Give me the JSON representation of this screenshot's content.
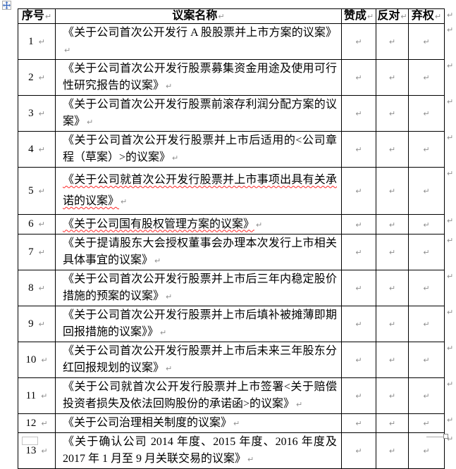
{
  "marks": {
    "end_of_cell": "↵"
  },
  "colors": {
    "border": "#000000",
    "end_of_cell_mark": "#8f8f8f",
    "spell_check_underline": "#ff2a2a",
    "move_handle_arrow": "#3d6cc0"
  },
  "table": {
    "columns": [
      {
        "key": "index",
        "label": "序号"
      },
      {
        "key": "name",
        "label": "议案名称"
      },
      {
        "key": "approve",
        "label": "赞成"
      },
      {
        "key": "oppose",
        "label": "反对"
      },
      {
        "key": "abstain",
        "label": "弃权"
      }
    ],
    "rows": [
      {
        "num": "1",
        "title": "《关于公司首次公开发行 A 股股票并上市方案的议案》",
        "spell_error": false,
        "approve": "",
        "oppose": "",
        "abstain": ""
      },
      {
        "num": "2",
        "title": "《关于公司首次公开发行股票募集资金用途及使用可行性研究报告的议案》",
        "spell_error": false,
        "approve": "",
        "oppose": "",
        "abstain": ""
      },
      {
        "num": "3",
        "title": "《关于公司首次公开发行股票前滚存利润分配方案的议案》",
        "spell_error": false,
        "approve": "",
        "oppose": "",
        "abstain": ""
      },
      {
        "num": "4",
        "title": "《关于公司首次公开发行股票并上市后适用的<公司章程（草案）>的议案》",
        "spell_error": false,
        "approve": "",
        "oppose": "",
        "abstain": ""
      },
      {
        "num": "5",
        "title": "《关于公司就首次公开发行股票并上市事项出具有关承诺的议案》",
        "spell_error": true,
        "approve": "",
        "oppose": "",
        "abstain": ""
      },
      {
        "num": "6",
        "title": "《关于公司国有股权管理方案的议案》",
        "spell_error": true,
        "approve": "",
        "oppose": "",
        "abstain": ""
      },
      {
        "num": "7",
        "title": "《关于提请股东大会授权董事会办理本次发行上市相关具体事宜的议案》",
        "spell_error": false,
        "approve": "",
        "oppose": "",
        "abstain": ""
      },
      {
        "num": "8",
        "title": "《关于公司首次公开发行股票并上市后三年内稳定股价措施的预案的议案》",
        "spell_error": false,
        "approve": "",
        "oppose": "",
        "abstain": ""
      },
      {
        "num": "9",
        "title": "《关于公司首次公开发行股票并上市后填补被摊薄即期回报措施的议案》》",
        "spell_error": false,
        "approve": "",
        "oppose": "",
        "abstain": ""
      },
      {
        "num": "10",
        "title": "《关于公司首次公开发行股票并上市后未来三年股东分红回报规划的议案》",
        "spell_error": false,
        "approve": "",
        "oppose": "",
        "abstain": ""
      },
      {
        "num": "11",
        "title": "《关于公司就首次公开发行股票并上市签署<关于赔偿投资者损失及依法回购股份的承诺函>的议案》",
        "spell_error": false,
        "approve": "",
        "oppose": "",
        "abstain": ""
      },
      {
        "num": "12",
        "title": "《关于公司治理相关制度的议案》",
        "spell_error": false,
        "approve": "",
        "oppose": "",
        "abstain": ""
      },
      {
        "num": "13",
        "title": "《关于确认公司 2014 年度、2015 年度、2016 年度及 2017 年 1 月至 9 月关联交易的议案》",
        "spell_error": false,
        "approve": "",
        "oppose": "",
        "abstain": ""
      }
    ]
  }
}
